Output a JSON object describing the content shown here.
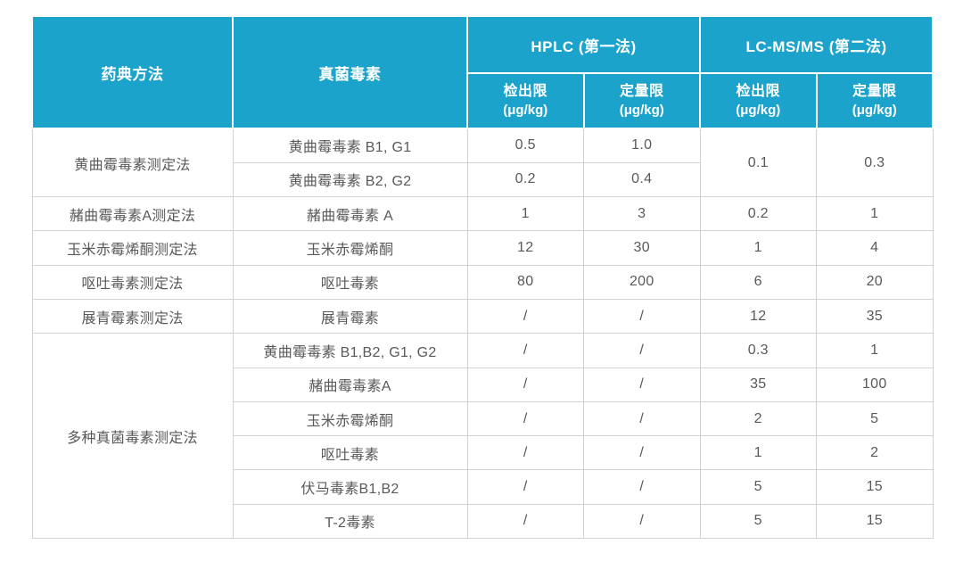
{
  "colors": {
    "header_bg": "#1CA3CB",
    "header_text": "#FFFFFF",
    "body_text": "#595959",
    "border": "#D2D2D2",
    "page_bg": "#FFFFFF"
  },
  "header": {
    "col_method": "药典方法",
    "col_toxin": "真菌毒素",
    "group_hplc": "HPLC (第一法)",
    "group_lcms": "LC-MS/MS (第二法)",
    "sub_lod": "检出限",
    "sub_loq": "定量限",
    "unit": "(μg/kg)"
  },
  "chart_data": {
    "type": "table",
    "columns": [
      "药典方法",
      "真菌毒素",
      "HPLC 检出限 (μg/kg)",
      "HPLC 定量限 (μg/kg)",
      "LC-MS/MS 检出限 (μg/kg)",
      "LC-MS/MS 定量限 (μg/kg)"
    ],
    "rows": [
      [
        "黄曲霉毒素测定法",
        "黄曲霉毒素 B1, G1",
        "0.5",
        "1.0",
        "0.1",
        "0.3"
      ],
      [
        "黄曲霉毒素测定法",
        "黄曲霉毒素 B2, G2",
        "0.2",
        "0.4",
        "0.1",
        "0.3"
      ],
      [
        "赭曲霉毒素A测定法",
        "赭曲霉毒素 A",
        "1",
        "3",
        "0.2",
        "1"
      ],
      [
        "玉米赤霉烯酮测定法",
        "玉米赤霉烯酮",
        "12",
        "30",
        "1",
        "4"
      ],
      [
        "呕吐毒素测定法",
        "呕吐毒素",
        "80",
        "200",
        "6",
        "20"
      ],
      [
        "展青霉素测定法",
        "展青霉素",
        "/",
        "/",
        "12",
        "35"
      ],
      [
        "多种真菌毒素测定法",
        "黄曲霉毒素 B1,B2, G1, G2",
        "/",
        "/",
        "0.3",
        "1"
      ],
      [
        "多种真菌毒素测定法",
        "赭曲霉毒素A",
        "/",
        "/",
        "35",
        "100"
      ],
      [
        "多种真菌毒素测定法",
        "玉米赤霉烯酮",
        "/",
        "/",
        "2",
        "5"
      ],
      [
        "多种真菌毒素测定法",
        "呕吐毒素",
        "/",
        "/",
        "1",
        "2"
      ],
      [
        "多种真菌毒素测定法",
        "伏马毒素B1,B2",
        "/",
        "/",
        "5",
        "15"
      ],
      [
        "多种真菌毒素测定法",
        "T-2毒素",
        "/",
        "/",
        "5",
        "15"
      ]
    ]
  },
  "table": {
    "rows": [
      {
        "method": "黄曲霉毒素测定法",
        "toxin": "黄曲霉毒素 B1, G1",
        "hplc_lod": "0.5",
        "hplc_loq": "1.0",
        "lcms_lod": "0.1",
        "lcms_loq": "0.3"
      },
      {
        "toxin": "黄曲霉毒素 B2, G2",
        "hplc_lod": "0.2",
        "hplc_loq": "0.4"
      },
      {
        "method": "赭曲霉毒素A测定法",
        "toxin": "赭曲霉毒素 A",
        "hplc_lod": "1",
        "hplc_loq": "3",
        "lcms_lod": "0.2",
        "lcms_loq": "1"
      },
      {
        "method": "玉米赤霉烯酮测定法",
        "toxin": "玉米赤霉烯酮",
        "hplc_lod": "12",
        "hplc_loq": "30",
        "lcms_lod": "1",
        "lcms_loq": "4"
      },
      {
        "method": "呕吐毒素测定法",
        "toxin": "呕吐毒素",
        "hplc_lod": "80",
        "hplc_loq": "200",
        "lcms_lod": "6",
        "lcms_loq": "20"
      },
      {
        "method": "展青霉素测定法",
        "toxin": "展青霉素",
        "hplc_lod": "/",
        "hplc_loq": "/",
        "lcms_lod": "12",
        "lcms_loq": "35"
      },
      {
        "method": "多种真菌毒素测定法",
        "toxin": "黄曲霉毒素 B1,B2, G1, G2",
        "hplc_lod": "/",
        "hplc_loq": "/",
        "lcms_lod": "0.3",
        "lcms_loq": "1"
      },
      {
        "toxin": "赭曲霉毒素A",
        "hplc_lod": "/",
        "hplc_loq": "/",
        "lcms_lod": "35",
        "lcms_loq": "100"
      },
      {
        "toxin": "玉米赤霉烯酮",
        "hplc_lod": "/",
        "hplc_loq": "/",
        "lcms_lod": "2",
        "lcms_loq": "5"
      },
      {
        "toxin": "呕吐毒素",
        "hplc_lod": "/",
        "hplc_loq": "/",
        "lcms_lod": "1",
        "lcms_loq": "2"
      },
      {
        "toxin": "伏马毒素B1,B2",
        "hplc_lod": "/",
        "hplc_loq": "/",
        "lcms_lod": "5",
        "lcms_loq": "15"
      },
      {
        "toxin": "T-2毒素",
        "hplc_lod": "/",
        "hplc_loq": "/",
        "lcms_lod": "5",
        "lcms_loq": "15"
      }
    ]
  }
}
